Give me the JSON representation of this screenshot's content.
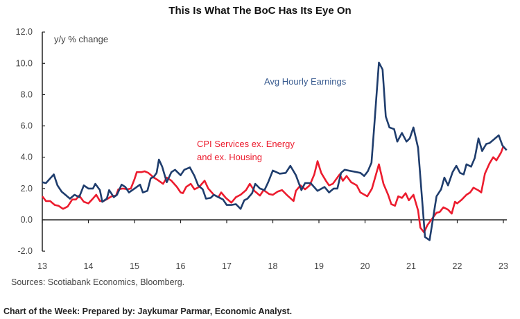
{
  "chart_data": {
    "type": "line",
    "title": "This Is What The BoC Has Its Eye On",
    "ylabel": "y/y % change",
    "xlabel": "",
    "ylim": [
      -2,
      12
    ],
    "xlim": [
      13,
      23
    ],
    "yticks": [
      "12.0",
      "10.0",
      "8.0",
      "6.0",
      "4.0",
      "2.0",
      "0.0",
      "-2.0"
    ],
    "ytick_values": [
      12,
      10,
      8,
      6,
      4,
      2,
      0,
      -2
    ],
    "xticks": [
      "13",
      "14",
      "15",
      "16",
      "17",
      "18",
      "19",
      "20",
      "21",
      "22",
      "23"
    ],
    "xtick_values": [
      13,
      14,
      15,
      16,
      17,
      18,
      19,
      20,
      21,
      22,
      23
    ],
    "grid": false,
    "series": [
      {
        "name": "Avg Hourly Earnings",
        "color": "#1f3d6d",
        "x": [
          13.0,
          13.08,
          13.25,
          13.33,
          13.42,
          13.5,
          13.6,
          13.7,
          13.8,
          13.9,
          14.0,
          14.1,
          14.15,
          14.25,
          14.3,
          14.4,
          14.45,
          14.55,
          14.62,
          14.72,
          14.8,
          14.88,
          15.0,
          15.12,
          15.18,
          15.28,
          15.35,
          15.42,
          15.48,
          15.53,
          15.6,
          15.7,
          15.8,
          15.88,
          16.0,
          16.08,
          16.2,
          16.3,
          16.38,
          16.48,
          16.55,
          16.65,
          16.72,
          16.82,
          16.92,
          17.0,
          17.1,
          17.2,
          17.3,
          17.38,
          17.45,
          17.55,
          17.62,
          17.72,
          17.82,
          17.9,
          18.0,
          18.15,
          18.28,
          18.38,
          18.5,
          18.62,
          18.7,
          18.82,
          18.97,
          19.12,
          19.22,
          19.32,
          19.4,
          19.48,
          19.56,
          19.9,
          19.98,
          20.06,
          20.14,
          20.2,
          20.25,
          20.3,
          20.38,
          20.45,
          20.53,
          20.63,
          20.7,
          20.8,
          20.9,
          20.97,
          21.05,
          21.15,
          21.3,
          21.4,
          21.55,
          21.65,
          21.72,
          21.8,
          21.9,
          21.98,
          22.06,
          22.14,
          22.2,
          22.3,
          22.38,
          22.46,
          22.54,
          22.63,
          22.7,
          22.8,
          22.9,
          22.98,
          23.07
        ],
        "values": [
          2.4,
          2.35,
          2.9,
          2.2,
          1.8,
          1.6,
          1.35,
          1.6,
          1.45,
          2.2,
          2.0,
          2.0,
          2.3,
          1.9,
          1.15,
          1.35,
          1.9,
          1.45,
          1.6,
          2.25,
          2.1,
          1.75,
          2.0,
          2.25,
          1.75,
          1.85,
          2.65,
          2.75,
          3.0,
          3.85,
          3.4,
          2.4,
          3.05,
          3.2,
          2.85,
          3.2,
          3.35,
          2.8,
          2.2,
          1.95,
          1.35,
          1.4,
          1.6,
          1.45,
          1.3,
          0.95,
          0.95,
          1.0,
          0.7,
          1.25,
          1.35,
          1.7,
          2.3,
          2.0,
          1.9,
          2.4,
          3.15,
          2.95,
          3.0,
          3.45,
          2.85,
          1.9,
          2.35,
          2.35,
          1.85,
          2.1,
          1.75,
          2.0,
          2.0,
          3.0,
          3.2,
          3.0,
          2.8,
          3.1,
          3.65,
          6.0,
          8.0,
          10.05,
          9.6,
          6.6,
          5.9,
          5.8,
          5.0,
          5.55,
          5.0,
          5.2,
          5.9,
          4.6,
          -1.1,
          -1.3,
          1.5,
          1.95,
          2.7,
          2.2,
          3.05,
          3.45,
          3.0,
          2.9,
          3.55,
          3.4,
          3.95,
          5.2,
          4.4,
          4.85,
          4.9,
          5.15,
          5.4,
          4.75,
          4.45
        ]
      },
      {
        "name": "CPI Services ex. Energy and ex. Housing",
        "label_lines": [
          "CPI Services ex. Energy",
          "and ex. Housing"
        ],
        "color": "#ec1c2e",
        "x": [
          13.0,
          13.08,
          13.17,
          13.27,
          13.35,
          13.45,
          13.55,
          13.65,
          13.73,
          13.8,
          13.9,
          14.0,
          14.08,
          14.17,
          14.25,
          14.33,
          14.42,
          14.5,
          14.6,
          14.65,
          14.75,
          14.85,
          14.92,
          15.0,
          15.05,
          15.15,
          15.22,
          15.3,
          15.42,
          15.5,
          15.62,
          15.7,
          15.8,
          15.92,
          16.0,
          16.05,
          16.12,
          16.22,
          16.3,
          16.4,
          16.52,
          16.6,
          16.72,
          16.82,
          16.88,
          16.98,
          17.1,
          17.2,
          17.3,
          17.42,
          17.5,
          17.6,
          17.72,
          17.8,
          17.92,
          18.0,
          18.1,
          18.2,
          18.3,
          18.45,
          18.5,
          18.6,
          18.7,
          18.8,
          18.9,
          18.97,
          19.05,
          19.15,
          19.22,
          19.3,
          19.45,
          19.52,
          19.6,
          19.7,
          19.82,
          19.9,
          20.05,
          20.15,
          20.3,
          20.4,
          20.5,
          20.57,
          20.65,
          20.72,
          20.8,
          20.88,
          20.95,
          21.05,
          21.15,
          21.2,
          21.28,
          21.35,
          21.45,
          21.55,
          21.62,
          21.7,
          21.8,
          21.88,
          21.95,
          22.0,
          22.1,
          22.2,
          22.28,
          22.35,
          22.45,
          22.52,
          22.6,
          22.7,
          22.78,
          22.85,
          22.95,
          23.0
        ],
        "values": [
          1.5,
          1.2,
          1.2,
          0.95,
          0.9,
          0.7,
          0.85,
          1.3,
          1.3,
          1.55,
          1.15,
          1.05,
          1.3,
          1.6,
          1.2,
          1.2,
          1.35,
          1.5,
          1.55,
          1.95,
          2.0,
          1.95,
          2.0,
          2.6,
          3.05,
          3.05,
          3.1,
          3.0,
          2.7,
          2.55,
          2.3,
          2.7,
          2.5,
          2.1,
          1.75,
          1.7,
          2.1,
          2.3,
          1.95,
          2.1,
          2.5,
          2.0,
          1.6,
          1.45,
          1.75,
          1.4,
          1.1,
          1.45,
          1.6,
          1.9,
          2.3,
          1.85,
          1.55,
          1.9,
          1.65,
          1.6,
          1.8,
          1.9,
          1.6,
          1.2,
          1.85,
          2.2,
          1.95,
          2.2,
          2.9,
          3.75,
          3.0,
          2.5,
          2.2,
          2.3,
          2.9,
          2.5,
          2.8,
          2.4,
          2.2,
          1.75,
          1.5,
          2.0,
          3.55,
          2.3,
          1.6,
          1.0,
          0.9,
          1.5,
          1.4,
          1.7,
          1.25,
          1.6,
          0.6,
          -0.5,
          -0.8,
          -0.35,
          0.05,
          0.45,
          0.5,
          0.8,
          0.65,
          0.4,
          1.15,
          1.05,
          1.3,
          1.6,
          1.75,
          2.05,
          1.9,
          1.75,
          2.95,
          3.6,
          4.0,
          3.8,
          4.3,
          4.7
        ]
      }
    ]
  },
  "sources": "Sources: Scotiabank Economics, Bloomberg.",
  "footer": "Chart of the Week: Prepared by: Jaykumar Parmar, Economic Analyst."
}
